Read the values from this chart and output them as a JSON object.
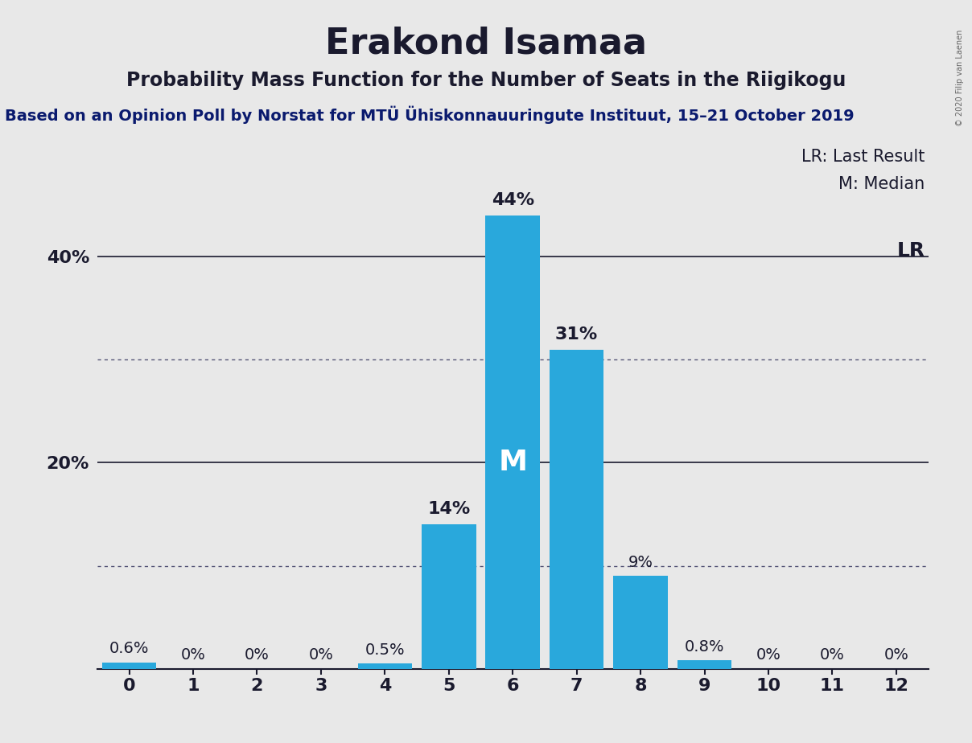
{
  "title": "Erakond Isamaa",
  "subtitle": "Probability Mass Function for the Number of Seats in the Riigikogu",
  "source_line": "Based on an Opinion Poll by Norstat for MTÜ Ühiskonnauuringute Instituut, 15–21 October 2019",
  "copyright": "© 2020 Filip van Laenen",
  "seats": [
    0,
    1,
    2,
    3,
    4,
    5,
    6,
    7,
    8,
    9,
    10,
    11,
    12
  ],
  "probabilities": [
    0.006,
    0.0,
    0.0,
    0.0,
    0.005,
    0.14,
    0.44,
    0.31,
    0.09,
    0.008,
    0.0,
    0.0,
    0.0
  ],
  "bar_color": "#29a8dc",
  "background_color": "#e8e8e8",
  "plot_bg_color": "#e8e8e8",
  "grid_solid_color": "#1a1a2e",
  "grid_dotted_color": "#555577",
  "text_color": "#1a1a2e",
  "source_color": "#0a1a6e",
  "median_seat": 6,
  "lr_seat": 12,
  "dotted_lines": [
    0.1,
    0.3
  ],
  "solid_lines": [
    0.2,
    0.4
  ],
  "label_fontsize": 16,
  "title_fontsize": 32,
  "subtitle_fontsize": 17,
  "source_fontsize": 14,
  "bar_label_fontsize": 16,
  "legend_fontsize": 15,
  "median_fontsize": 26,
  "lr_fontsize": 18,
  "xlim": [
    -0.5,
    12.5
  ],
  "ylim": [
    0,
    0.505
  ],
  "bar_labels": {
    "0": "0.6%",
    "1": "0%",
    "2": "0%",
    "3": "0%",
    "4": "0.5%",
    "5": "14%",
    "6": "44%",
    "7": "31%",
    "8": "9%",
    "9": "0.8%",
    "10": "0%",
    "11": "0%",
    "12": "0%"
  }
}
